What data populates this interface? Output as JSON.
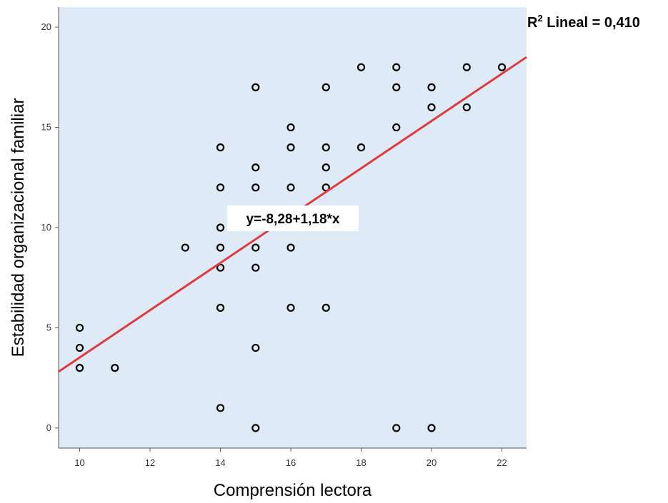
{
  "chart_data": {
    "type": "scatter",
    "xlabel": "Comprensión lectora",
    "ylabel": "Estabilidad organizacional familiar",
    "xlim": [
      9.4,
      22.7
    ],
    "ylim": [
      -1,
      21
    ],
    "xticks": [
      10,
      12,
      14,
      16,
      18,
      20,
      22
    ],
    "yticks": [
      0,
      5,
      10,
      15,
      20
    ],
    "grid": false,
    "points": [
      {
        "x": 10,
        "y": 5
      },
      {
        "x": 10,
        "y": 4
      },
      {
        "x": 10,
        "y": 3
      },
      {
        "x": 11,
        "y": 3
      },
      {
        "x": 13,
        "y": 9
      },
      {
        "x": 14,
        "y": 14
      },
      {
        "x": 14,
        "y": 12
      },
      {
        "x": 14,
        "y": 10
      },
      {
        "x": 14,
        "y": 9
      },
      {
        "x": 14,
        "y": 8
      },
      {
        "x": 14,
        "y": 6
      },
      {
        "x": 14,
        "y": 1
      },
      {
        "x": 15,
        "y": 17
      },
      {
        "x": 15,
        "y": 13
      },
      {
        "x": 15,
        "y": 12
      },
      {
        "x": 15,
        "y": 9
      },
      {
        "x": 15,
        "y": 8
      },
      {
        "x": 15,
        "y": 4
      },
      {
        "x": 15,
        "y": 0
      },
      {
        "x": 16,
        "y": 15
      },
      {
        "x": 16,
        "y": 14
      },
      {
        "x": 16,
        "y": 12
      },
      {
        "x": 16,
        "y": 9
      },
      {
        "x": 16,
        "y": 6
      },
      {
        "x": 17,
        "y": 17
      },
      {
        "x": 17,
        "y": 14
      },
      {
        "x": 17,
        "y": 13
      },
      {
        "x": 17,
        "y": 12
      },
      {
        "x": 17,
        "y": 6
      },
      {
        "x": 18,
        "y": 18
      },
      {
        "x": 18,
        "y": 14
      },
      {
        "x": 19,
        "y": 18
      },
      {
        "x": 19,
        "y": 17
      },
      {
        "x": 19,
        "y": 15
      },
      {
        "x": 19,
        "y": 0
      },
      {
        "x": 20,
        "y": 17
      },
      {
        "x": 20,
        "y": 16
      },
      {
        "x": 20,
        "y": 0
      },
      {
        "x": 21,
        "y": 18
      },
      {
        "x": 21,
        "y": 16
      },
      {
        "x": 22,
        "y": 18
      }
    ],
    "fit_line": {
      "intercept": -8.28,
      "slope": 1.18,
      "equation_label": "y=-8,28+1,18*x",
      "color": "#e0393e"
    },
    "r_squared_label": {
      "prefix": "R",
      "superscript": "2",
      "rest": " Lineal = 0,410"
    },
    "colors": {
      "plot_background": "#deebf7",
      "marker_stroke": "#000000",
      "fit_line": "#e0393e",
      "axis": "#555555"
    }
  }
}
